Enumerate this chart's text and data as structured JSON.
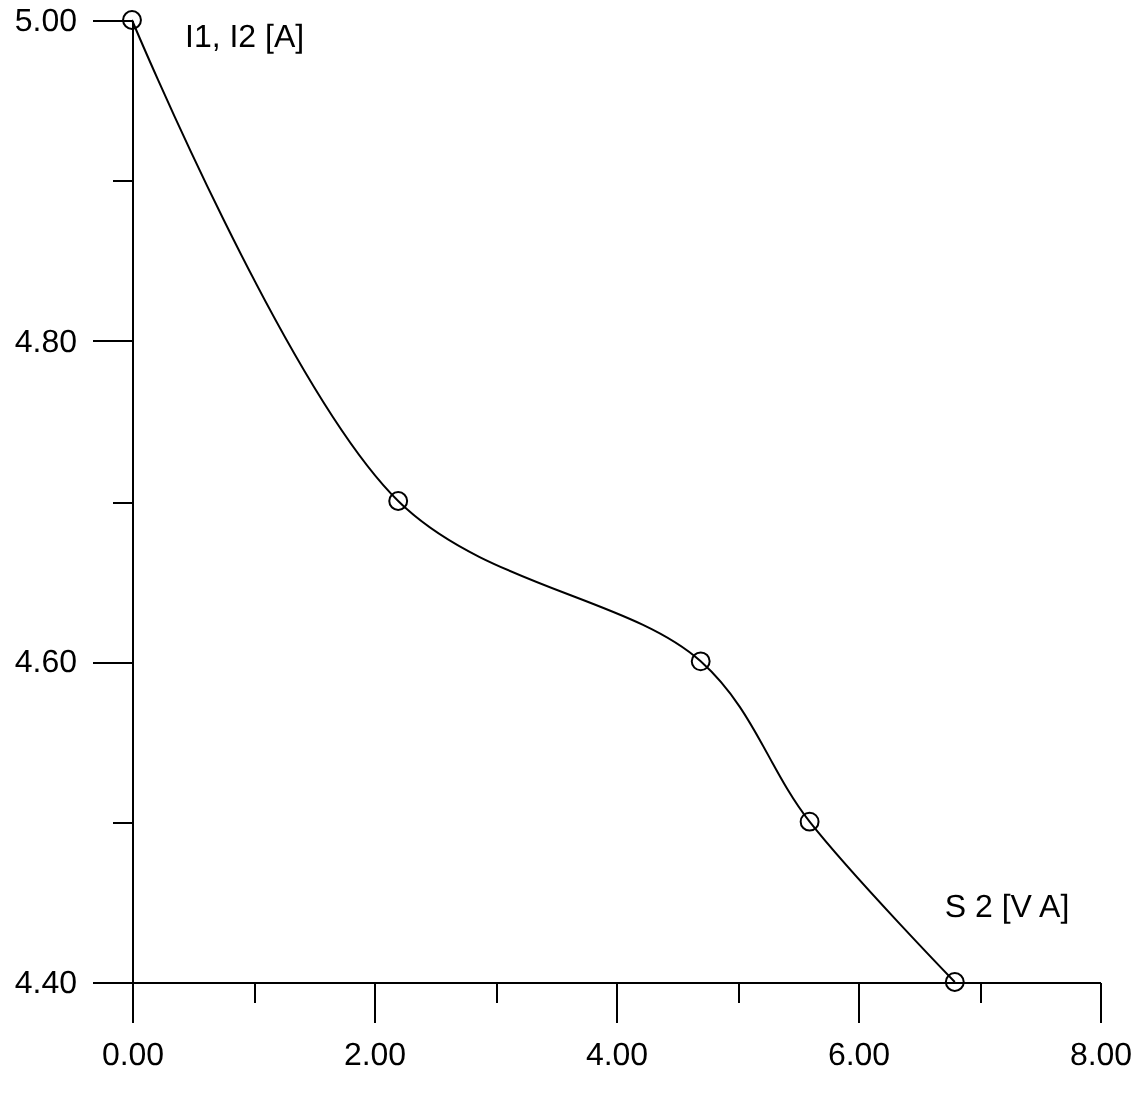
{
  "chart_data": {
    "type": "line",
    "xlabel": "S 2 [V A]",
    "ylabel": "I1, I2 [A]",
    "x": [
      0,
      2.2,
      4.7,
      5.6,
      6.8
    ],
    "series": [
      {
        "color": "#000000",
        "values": [
          5.0,
          4.7,
          4.6,
          4.5,
          4.4
        ]
      }
    ],
    "xlim": [
      0,
      8
    ],
    "xticks": [
      {
        "value": 0,
        "label": "0.00"
      },
      {
        "value": 1,
        "label": null
      },
      {
        "value": 2,
        "label": "2.00"
      },
      {
        "value": 3,
        "label": null
      },
      {
        "value": 4,
        "label": "4.00"
      },
      {
        "value": 5,
        "label": null
      },
      {
        "value": 6,
        "label": "6.00"
      },
      {
        "value": 7,
        "label": null
      },
      {
        "value": 8,
        "label": "8.00"
      }
    ],
    "ylim": [
      4.4,
      5.0
    ],
    "yticks": [
      {
        "value": 4.4,
        "label": "4.40"
      },
      {
        "value": 4.5,
        "label": null
      },
      {
        "value": 4.6,
        "label": "4.60"
      },
      {
        "value": 4.7,
        "label": null
      },
      {
        "value": 4.8,
        "label": "4.80"
      },
      {
        "value": 4.9,
        "label": null
      },
      {
        "value": 5.0,
        "label": "5.00"
      }
    ],
    "marker": "circle",
    "line_style": "solid"
  }
}
